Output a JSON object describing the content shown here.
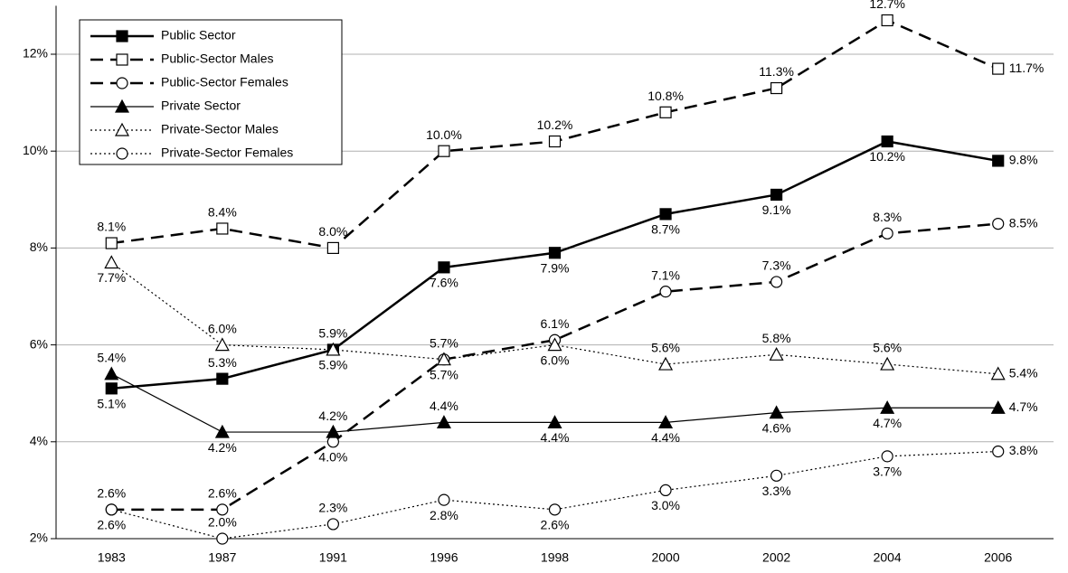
{
  "chart_data": {
    "type": "line",
    "categories": [
      "1983",
      "1987",
      "1991",
      "1996",
      "1998",
      "2000",
      "2002",
      "2004",
      "2006"
    ],
    "ylim": [
      2,
      13
    ],
    "yticks": [
      {
        "value": 2,
        "label": "2%"
      },
      {
        "value": 4,
        "label": "4%"
      },
      {
        "value": 6,
        "label": "6%"
      },
      {
        "value": 8,
        "label": "8%"
      },
      {
        "value": 10,
        "label": "10%"
      },
      {
        "value": 12,
        "label": "12%"
      }
    ],
    "grid": true,
    "legend": "upper left",
    "series": [
      {
        "name": "Public Sector",
        "color": "#000000",
        "line_width": 2.5,
        "dash": "solid",
        "marker": "square",
        "marker_fill": "#000000",
        "values": [
          5.1,
          5.3,
          5.9,
          7.6,
          7.9,
          8.7,
          9.1,
          10.2,
          9.8
        ],
        "value_labels": [
          "5.1%",
          "5.3%",
          "5.9%",
          "7.6%",
          "7.9%",
          "8.7%",
          "9.1%",
          "10.2%",
          "9.8%"
        ]
      },
      {
        "name": "Public-Sector Males",
        "color": "#000000",
        "line_width": 2.5,
        "dash": "dashed",
        "marker": "square",
        "marker_fill": "#ffffff",
        "values": [
          8.1,
          8.4,
          8.0,
          10.0,
          10.2,
          10.8,
          11.3,
          12.7,
          11.7
        ],
        "value_labels": [
          "8.1%",
          "8.4%",
          "8.0%",
          "10.0%",
          "10.2%",
          "10.8%",
          "11.3%",
          "12.7%",
          "11.7%"
        ]
      },
      {
        "name": "Public-Sector Females",
        "color": "#000000",
        "line_width": 2.5,
        "dash": "dashed",
        "marker": "circle",
        "marker_fill": "#ffffff",
        "values": [
          2.6,
          2.6,
          4.0,
          5.7,
          6.1,
          7.1,
          7.3,
          8.3,
          8.5
        ],
        "value_labels": [
          "2.6%",
          "2.6%",
          "4.0%",
          "5.7%",
          "6.1%",
          "7.1%",
          "7.3%",
          "8.3%",
          "8.5%"
        ]
      },
      {
        "name": "Private Sector",
        "color": "#000000",
        "line_width": 1.2,
        "dash": "solid",
        "marker": "triangle",
        "marker_fill": "#000000",
        "values": [
          5.4,
          4.2,
          4.2,
          4.4,
          4.4,
          4.4,
          4.6,
          4.7,
          4.7
        ],
        "value_labels": [
          "5.4%",
          "4.2%",
          "4.2%",
          "4.4%",
          "4.4%",
          "4.4%",
          "4.6%",
          "4.7%",
          "4.7%"
        ]
      },
      {
        "name": "Private-Sector Males",
        "color": "#000000",
        "line_width": 1.2,
        "dash": "dotted",
        "marker": "triangle",
        "marker_fill": "#ffffff",
        "values": [
          7.7,
          6.0,
          5.9,
          5.7,
          6.0,
          5.6,
          5.8,
          5.6,
          5.4
        ],
        "value_labels": [
          "7.7%",
          "6.0%",
          "5.9%",
          "5.7%",
          "6.0%",
          "5.6%",
          "5.8%",
          "5.6%",
          "5.4%"
        ]
      },
      {
        "name": "Private-Sector Females",
        "color": "#000000",
        "line_width": 1.2,
        "dash": "dotted",
        "marker": "circle",
        "marker_fill": "#ffffff",
        "values": [
          2.6,
          2.0,
          2.3,
          2.8,
          2.6,
          3.0,
          3.3,
          3.7,
          3.8
        ],
        "value_labels": [
          "2.6%",
          "2.0%",
          "2.3%",
          "2.8%",
          "2.6%",
          "3.0%",
          "3.3%",
          "3.7%",
          "3.8%"
        ]
      }
    ]
  }
}
